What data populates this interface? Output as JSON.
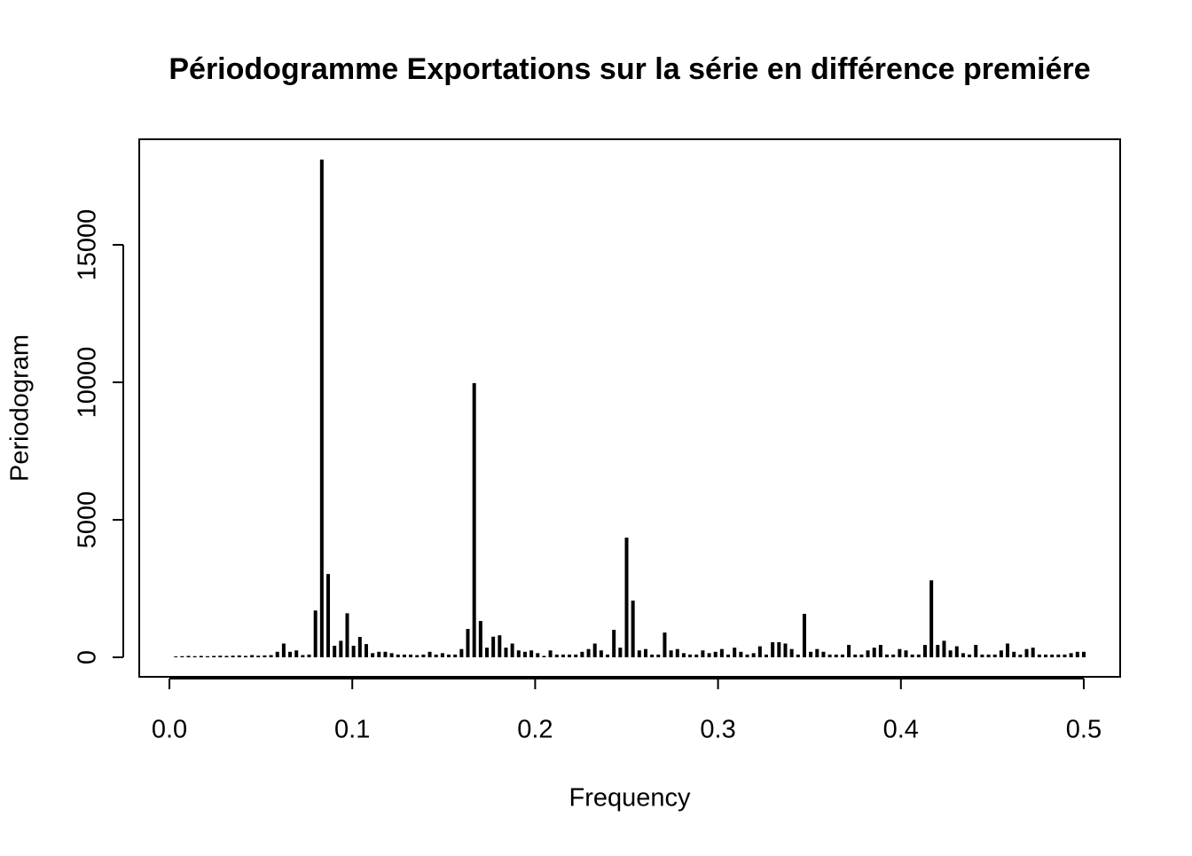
{
  "chart_data": {
    "type": "spike",
    "title": "Périodogramme Exportations sur la série en différence premiére",
    "x_label": "Frequency",
    "y_label": "Periodogram",
    "x": [
      0.00347,
      0.00694,
      0.01042,
      0.01389,
      0.01736,
      0.02083,
      0.02431,
      0.02778,
      0.03125,
      0.03472,
      0.03819,
      0.04167,
      0.04514,
      0.04861,
      0.05208,
      0.05556,
      0.05903,
      0.0625,
      0.06597,
      0.06944,
      0.07292,
      0.07639,
      0.07986,
      0.08333,
      0.08681,
      0.09028,
      0.09375,
      0.09722,
      0.10069,
      0.10417,
      0.10764,
      0.11111,
      0.11458,
      0.11806,
      0.12153,
      0.125,
      0.12847,
      0.13194,
      0.13542,
      0.13889,
      0.14236,
      0.14583,
      0.14931,
      0.15278,
      0.15625,
      0.15972,
      0.16319,
      0.16667,
      0.17014,
      0.17361,
      0.17708,
      0.18056,
      0.18403,
      0.1875,
      0.19097,
      0.19444,
      0.19792,
      0.20139,
      0.20486,
      0.20833,
      0.21181,
      0.21528,
      0.21875,
      0.22222,
      0.22569,
      0.22917,
      0.23264,
      0.23611,
      0.23958,
      0.24306,
      0.24653,
      0.25,
      0.25347,
      0.25694,
      0.26042,
      0.26389,
      0.26736,
      0.27083,
      0.27431,
      0.27778,
      0.28125,
      0.28472,
      0.28819,
      0.29167,
      0.29514,
      0.29861,
      0.30208,
      0.30556,
      0.30903,
      0.3125,
      0.31597,
      0.31944,
      0.32292,
      0.32639,
      0.32986,
      0.33333,
      0.33681,
      0.34028,
      0.34375,
      0.34722,
      0.35069,
      0.35417,
      0.35764,
      0.36111,
      0.36458,
      0.36806,
      0.37153,
      0.375,
      0.37847,
      0.38194,
      0.38542,
      0.38889,
      0.39236,
      0.39583,
      0.39931,
      0.40278,
      0.40625,
      0.40972,
      0.41319,
      0.41667,
      0.42014,
      0.42361,
      0.42708,
      0.43056,
      0.43403,
      0.4375,
      0.44097,
      0.44444,
      0.44792,
      0.45139,
      0.45486,
      0.45833,
      0.46181,
      0.46528,
      0.46875,
      0.47222,
      0.47569,
      0.47917,
      0.48264,
      0.48611,
      0.48958,
      0.49306,
      0.49653,
      0.5
    ],
    "values": [
      30,
      40,
      50,
      40,
      50,
      40,
      50,
      60,
      50,
      60,
      70,
      50,
      80,
      60,
      70,
      80,
      200,
      500,
      200,
      250,
      80,
      100,
      1700,
      18100,
      3030,
      420,
      600,
      1600,
      420,
      740,
      480,
      150,
      200,
      200,
      150,
      100,
      100,
      100,
      80,
      100,
      200,
      100,
      150,
      100,
      100,
      300,
      1030,
      9970,
      1320,
      350,
      750,
      800,
      350,
      500,
      250,
      200,
      250,
      150,
      50,
      250,
      100,
      100,
      100,
      100,
      200,
      300,
      500,
      250,
      100,
      1000,
      350,
      4350,
      2060,
      250,
      300,
      100,
      100,
      900,
      250,
      300,
      150,
      100,
      100,
      250,
      150,
      200,
      300,
      100,
      350,
      200,
      100,
      150,
      400,
      100,
      550,
      550,
      500,
      300,
      100,
      1580,
      200,
      300,
      200,
      100,
      100,
      100,
      450,
      100,
      100,
      250,
      350,
      450,
      100,
      100,
      300,
      250,
      100,
      100,
      450,
      2800,
      450,
      600,
      250,
      400,
      150,
      100,
      450,
      100,
      100,
      100,
      250,
      500,
      200,
      100,
      300,
      350,
      100,
      100,
      100,
      100,
      100,
      150,
      200,
      200
    ],
    "color": "#000000",
    "xlim": [
      -0.0165,
      0.5199
    ],
    "ylim": [
      -710,
      18839
    ],
    "xticks": [
      {
        "value": 0,
        "label": "0.0"
      },
      0.1,
      0.2,
      0.3,
      0.4,
      0.5
    ],
    "yticks": [
      0,
      5000,
      10000,
      15000
    ]
  }
}
